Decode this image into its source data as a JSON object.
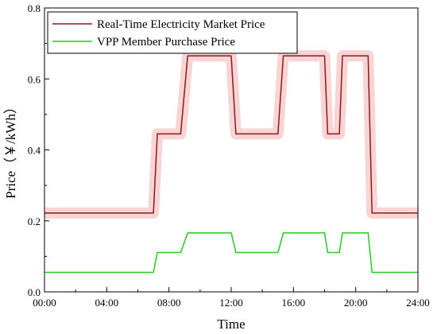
{
  "chart_data": {
    "type": "line",
    "xlabel": "Time",
    "ylabel": "Price（￥/kWh）",
    "xlim": [
      0,
      24
    ],
    "ylim": [
      0,
      0.8
    ],
    "xticks": [
      "00:00",
      "04:00",
      "08:00",
      "12:00",
      "16:00",
      "20:00",
      "24:00"
    ],
    "yticks": [
      "0.0",
      "0.2",
      "0.4",
      "0.6",
      "0.8"
    ],
    "grid": false,
    "legend_position": "top-left",
    "series": [
      {
        "name": "Real-Time Electricity Market Price",
        "color": "#8b1a1a",
        "halo": "#f6c6c6",
        "x": [
          0,
          7.0,
          7.25,
          8.75,
          9.2,
          12.0,
          12.3,
          15.0,
          15.35,
          18.0,
          18.2,
          18.95,
          19.15,
          20.8,
          21.05,
          24
        ],
        "y": [
          0.222,
          0.222,
          0.445,
          0.445,
          0.665,
          0.665,
          0.445,
          0.445,
          0.665,
          0.665,
          0.445,
          0.445,
          0.665,
          0.665,
          0.222,
          0.222
        ]
      },
      {
        "name": "VPP Member Purchase Price",
        "color": "#22cc22",
        "halo": "",
        "x": [
          0,
          7.0,
          7.25,
          8.75,
          9.2,
          12.0,
          12.3,
          15.0,
          15.35,
          18.0,
          18.2,
          18.95,
          19.15,
          20.8,
          21.05,
          24
        ],
        "y": [
          0.055,
          0.055,
          0.111,
          0.111,
          0.166,
          0.166,
          0.111,
          0.111,
          0.166,
          0.166,
          0.111,
          0.111,
          0.166,
          0.166,
          0.055,
          0.055
        ]
      }
    ]
  }
}
